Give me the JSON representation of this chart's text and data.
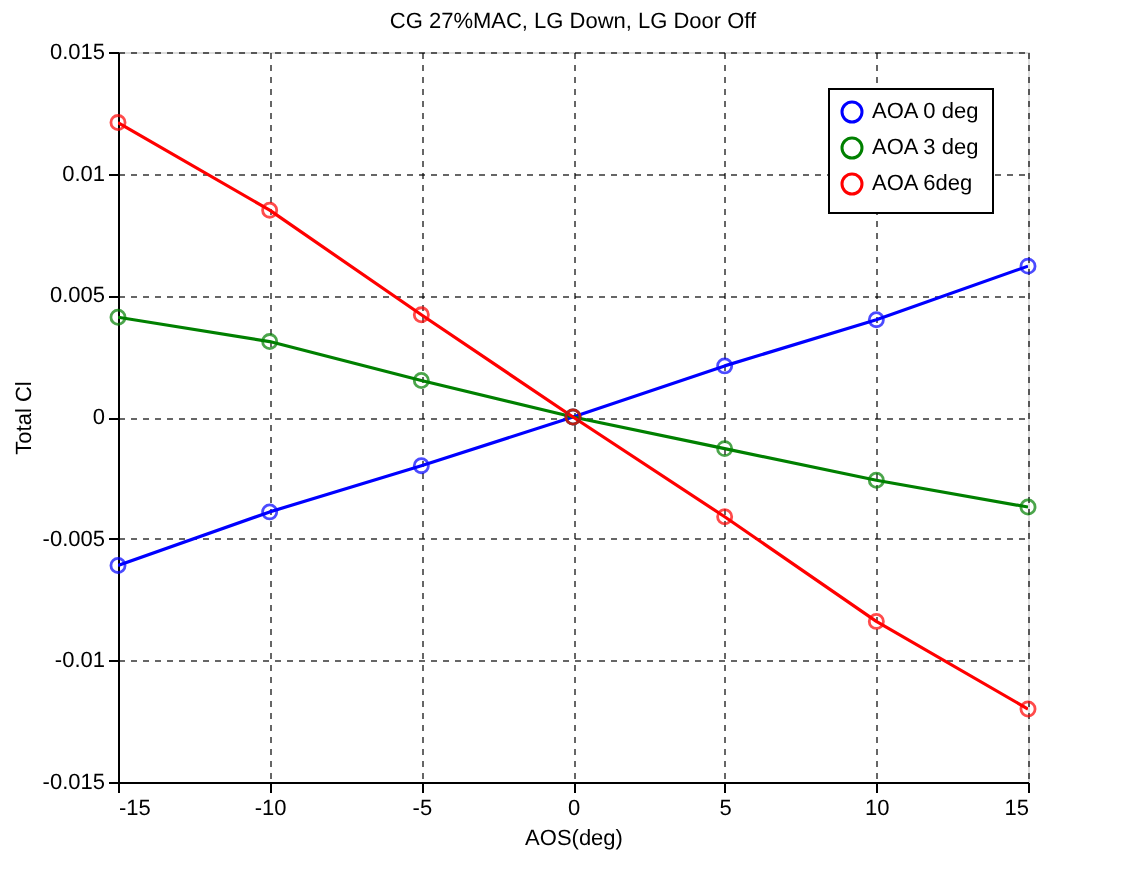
{
  "chart_data": {
    "type": "line",
    "title": "CG 27%MAC, LG Down, LG Door Off",
    "xlabel": "AOS(deg)",
    "ylabel": "Total Cl",
    "x": [
      -15,
      -10,
      -5,
      0,
      5,
      10,
      15
    ],
    "series": [
      {
        "name": "AOA 0 deg",
        "color": "#0000ff",
        "values": [
          -0.0061,
          -0.0039,
          -0.002,
          0,
          0.0021,
          0.004,
          0.0062
        ]
      },
      {
        "name": "AOA 3 deg",
        "color": "#008000",
        "values": [
          0.0041,
          0.0031,
          0.0015,
          0,
          -0.0013,
          -0.0026,
          -0.0037
        ]
      },
      {
        "name": "AOA 6deg",
        "color": "#ff0000",
        "values": [
          0.0121,
          0.0085,
          0.0042,
          0,
          -0.0041,
          -0.0084,
          -0.012
        ]
      }
    ],
    "xlim": [
      -15,
      15
    ],
    "xticks": [
      -15,
      -10,
      -5,
      0,
      5,
      10,
      15
    ],
    "ylim": [
      -0.015,
      0.015
    ],
    "yticks": [
      -0.015,
      -0.01,
      -0.005,
      0,
      0.005,
      0.01,
      0.015
    ],
    "grid": true,
    "legend": "top right",
    "marker": "circle",
    "line_style": "solid"
  }
}
